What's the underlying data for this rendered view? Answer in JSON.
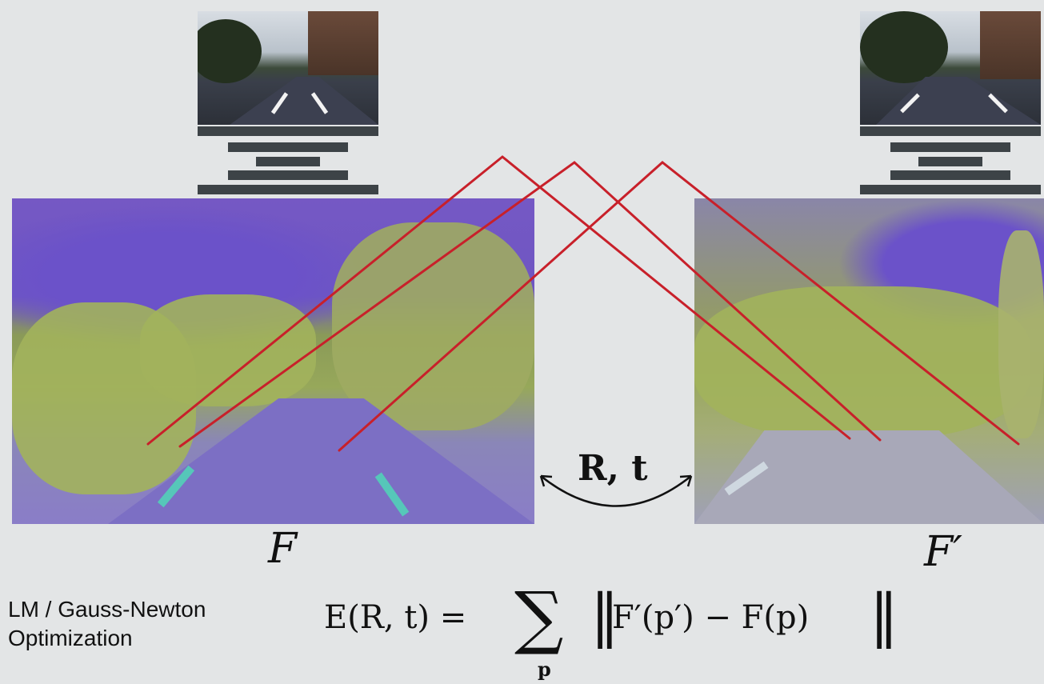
{
  "labels": {
    "feature_left": "F",
    "feature_right": "F′",
    "pose": "R, t",
    "method_line1": "LM / Gauss-Newton",
    "method_line2": "Optimization"
  },
  "equation": {
    "lhs": "E(R, t) =",
    "sum_symbol": "∑",
    "sum_index": "p",
    "body": "F′(p′) − F(p)"
  },
  "colors": {
    "correspondence": "#c8202a",
    "background": "#e3e5e6",
    "bars": "#3d4347"
  }
}
